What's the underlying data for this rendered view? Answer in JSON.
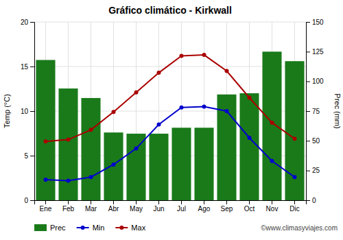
{
  "chart_data": {
    "type": "bar",
    "title": "Gráfico climático - Kirkwall",
    "categories": [
      "Ene",
      "Feb",
      "Mar",
      "Abr",
      "May",
      "Jun",
      "Jul",
      "Ago",
      "Sep",
      "Oct",
      "Nov",
      "Dic"
    ],
    "series": [
      {
        "name": "Prec",
        "type": "bar",
        "axis": "y2",
        "color": "#1a7a1a",
        "values": [
          118,
          94,
          86,
          57,
          56,
          56,
          61,
          61,
          89,
          90,
          125,
          117
        ]
      },
      {
        "name": "Min",
        "type": "line",
        "color": "#0000cc",
        "marker": "circle",
        "line_style": "solid",
        "values": [
          2.3,
          2.2,
          2.6,
          4.0,
          5.8,
          8.5,
          10.4,
          10.5,
          10.0,
          7.0,
          4.4,
          2.6
        ]
      },
      {
        "name": "Max",
        "type": "line",
        "color": "#aa0000",
        "marker": "circle",
        "line_style": "solid",
        "values": [
          6.6,
          6.8,
          7.9,
          9.9,
          12.1,
          14.3,
          16.2,
          16.3,
          14.5,
          11.5,
          8.7,
          6.9
        ]
      }
    ],
    "ylim": [
      0,
      20
    ],
    "yticks": [
      0,
      5,
      10,
      15,
      20
    ],
    "y2lim": [
      0,
      150
    ],
    "y2ticks": [
      0,
      25,
      50,
      75,
      100,
      125,
      150
    ],
    "ylabel": "Temp (°C)",
    "y2label": "Prec (mm)",
    "grid": true,
    "legend": "bottom",
    "annotations": [
      "©www.climasyviajes.com"
    ]
  }
}
